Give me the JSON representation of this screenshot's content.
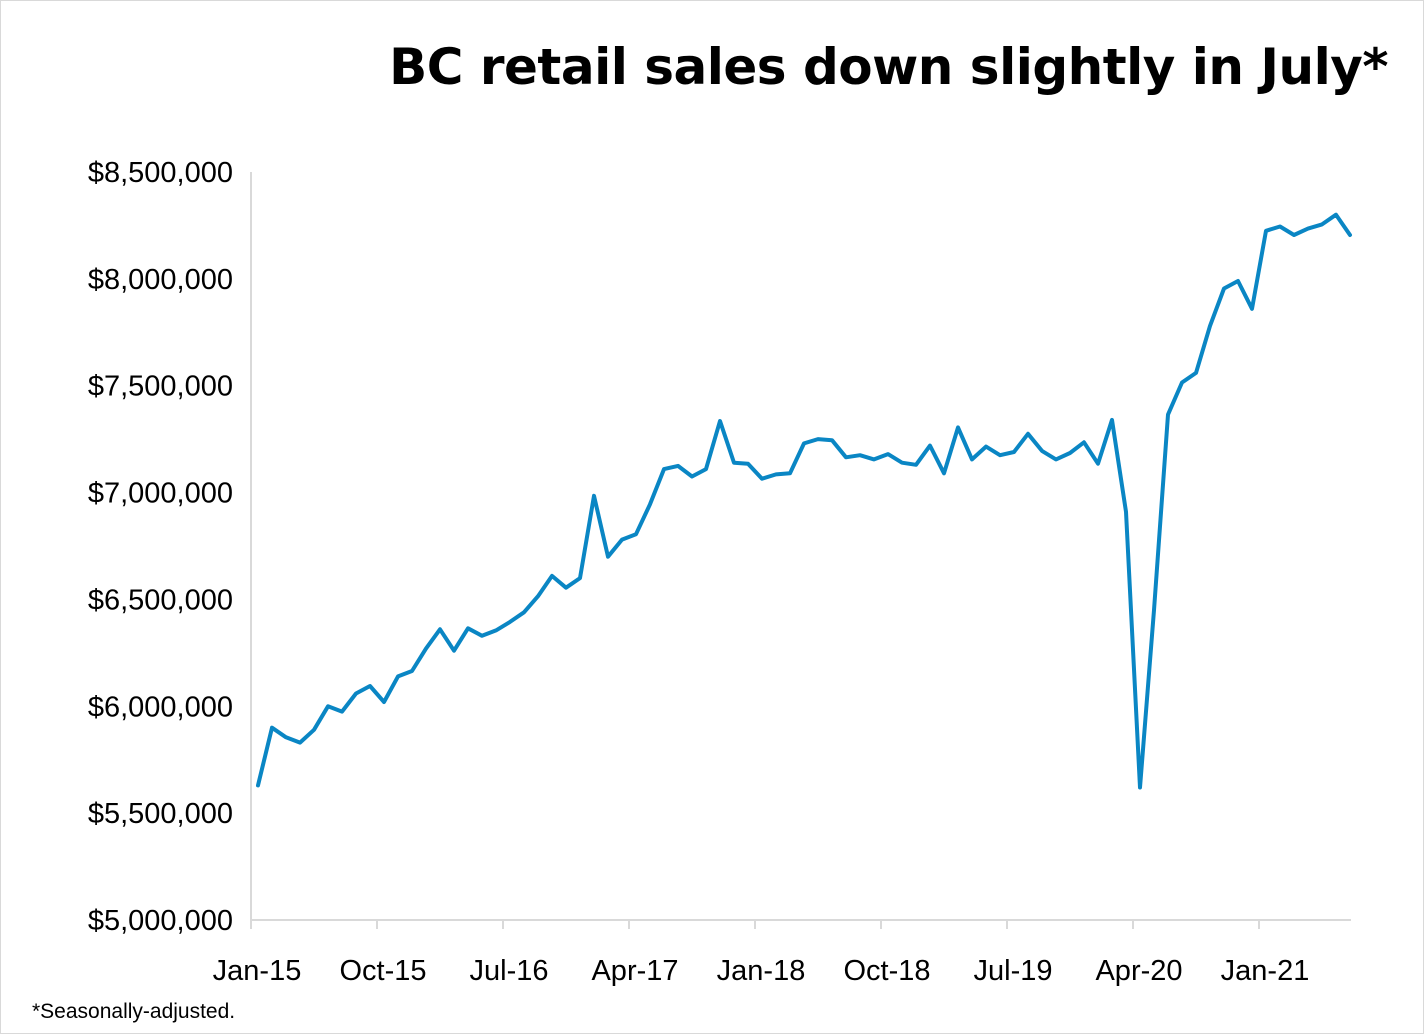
{
  "chart_data": {
    "type": "line",
    "title": "BC retail sales down slightly in July*",
    "footnote": "*Seasonally-adjusted.",
    "xlabel": "",
    "ylabel": "",
    "ylim": [
      5000000,
      8500000
    ],
    "y_ticks": [
      5000000,
      5500000,
      6000000,
      6500000,
      7000000,
      7500000,
      8000000,
      8500000
    ],
    "y_tick_labels": [
      "$5,000,000",
      "$5,500,000",
      "$6,000,000",
      "$6,500,000",
      "$7,000,000",
      "$7,500,000",
      "$8,000,000",
      "$8,500,000"
    ],
    "x_tick_labels": [
      "Jan-15",
      "Oct-15",
      "Jul-16",
      "Apr-17",
      "Jan-18",
      "Oct-18",
      "Jul-19",
      "Apr-20",
      "Jan-21"
    ],
    "x_tick_indices": [
      0,
      9,
      18,
      27,
      36,
      45,
      54,
      63,
      72
    ],
    "grid": false,
    "legend": "none",
    "line_color": "#0a86c4",
    "series": [
      {
        "name": "",
        "start": "Jan-15",
        "frequency": "monthly",
        "values": [
          5630000,
          5900000,
          5855000,
          5830000,
          5890000,
          6000000,
          5975000,
          6060000,
          6095000,
          6020000,
          6140000,
          6165000,
          6270000,
          6360000,
          6260000,
          6365000,
          6330000,
          6355000,
          6395000,
          6440000,
          6515000,
          6610000,
          6555000,
          6600000,
          6985000,
          6700000,
          6780000,
          6805000,
          6945000,
          7110000,
          7125000,
          7075000,
          7110000,
          7335000,
          7140000,
          7135000,
          7065000,
          7085000,
          7090000,
          7230000,
          7250000,
          7245000,
          7165000,
          7175000,
          7155000,
          7180000,
          7140000,
          7130000,
          7220000,
          7090000,
          7305000,
          7155000,
          7215000,
          7175000,
          7190000,
          7275000,
          7195000,
          7155000,
          7185000,
          7235000,
          7135000,
          7340000,
          6910000,
          5620000,
          6450000,
          7365000,
          7515000,
          7560000,
          7780000,
          7955000,
          7990000,
          7860000,
          8225000,
          8245000,
          8205000,
          8235000,
          8255000,
          8300000,
          8205000
        ]
      }
    ]
  }
}
